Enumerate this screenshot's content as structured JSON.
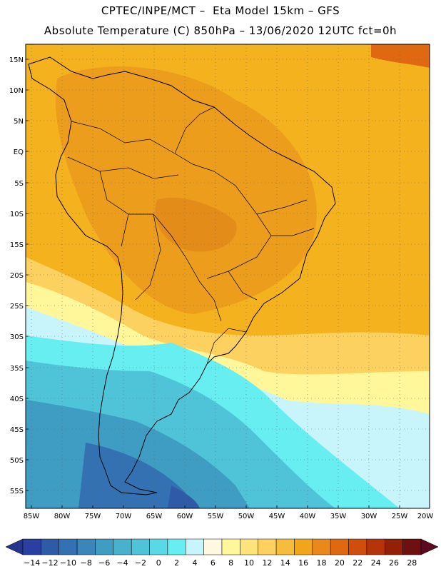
{
  "header": {
    "line1": "CPTEC/INPE/MCT –  Eta Model 15km – GFS",
    "line2": "Absolute Temperature (C) 850hPa – 13/06/2020 12UTC fct=0h"
  },
  "map": {
    "lat_labels": [
      "15N",
      "10N",
      "5N",
      "EQ",
      "5S",
      "10S",
      "15S",
      "20S",
      "25S",
      "30S",
      "35S",
      "40S",
      "45S",
      "50S",
      "55S"
    ],
    "lon_labels": [
      "85W",
      "80W",
      "75W",
      "70W",
      "65W",
      "60W",
      "55W",
      "50W",
      "45W",
      "40W",
      "35W",
      "30W",
      "25W",
      "20W"
    ],
    "lat_range": [
      15,
      -57
    ],
    "lon_range": [
      -85,
      -20
    ]
  },
  "colorbar": {
    "labels": [
      "-14",
      "-12",
      "-10",
      "-8",
      "-6",
      "-4",
      "-2",
      "0",
      "2",
      "4",
      "6",
      "8",
      "10",
      "12",
      "14",
      "16",
      "18",
      "20",
      "22",
      "24",
      "26",
      "28"
    ],
    "colors": [
      "#2a3fa0",
      "#2f5aa8",
      "#3471b2",
      "#3a86ba",
      "#3f9cc3",
      "#48b1cc",
      "#4fc4d8",
      "#59d9e6",
      "#66eef1",
      "#c8f4fb",
      "#fff8e0",
      "#fff799",
      "#fde37a",
      "#fcd160",
      "#f5bc3d",
      "#f1a51a",
      "#e8891a",
      "#e06810",
      "#d14d0c",
      "#b5340a",
      "#952008",
      "#6f1010"
    ],
    "under_color": "#27348c",
    "over_color": "#5c0a1f"
  }
}
